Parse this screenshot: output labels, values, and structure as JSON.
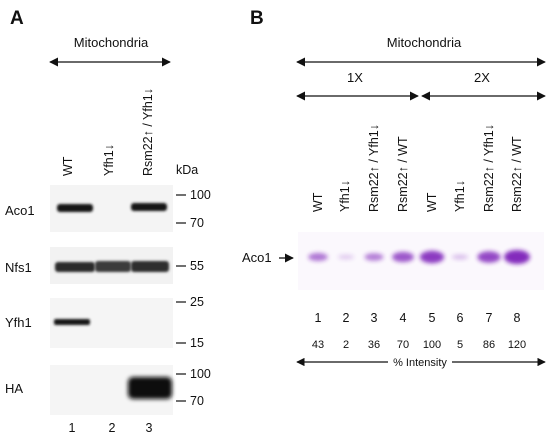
{
  "panel_a": {
    "label": "A",
    "header": "Mitochondria",
    "lanes": [
      "WT",
      "Yfh1↓",
      "Rsm22↑ / Yfh1↓"
    ],
    "kda_label": "kDa",
    "blots": [
      {
        "name": "Aco1",
        "markers": [
          "100",
          "70"
        ]
      },
      {
        "name": "Nfs1",
        "markers": [
          "55"
        ]
      },
      {
        "name": "Yfh1",
        "markers": [
          "25",
          "15"
        ]
      },
      {
        "name": "HA",
        "markers": [
          "100",
          "70"
        ]
      }
    ],
    "lane_numbers": [
      "1",
      "2",
      "3"
    ]
  },
  "panel_b": {
    "label": "B",
    "header": "Mitochondria",
    "group_1x": "1X",
    "group_2x": "2X",
    "lanes": [
      "WT",
      "Yfh1↓",
      "Rsm22↑ / Yfh1↓",
      "Rsm22↑ / WT",
      "WT",
      "Yfh1↓",
      "Rsm22↑ / Yfh1↓",
      "Rsm22↑ / WT"
    ],
    "band_label": "Aco1",
    "lane_numbers": [
      "1",
      "2",
      "3",
      "4",
      "5",
      "6",
      "7",
      "8"
    ],
    "intensities": [
      43,
      2,
      36,
      70,
      100,
      5,
      86,
      120
    ],
    "intensity_label": "% Intensity",
    "band_color": "#7a1fb8"
  }
}
